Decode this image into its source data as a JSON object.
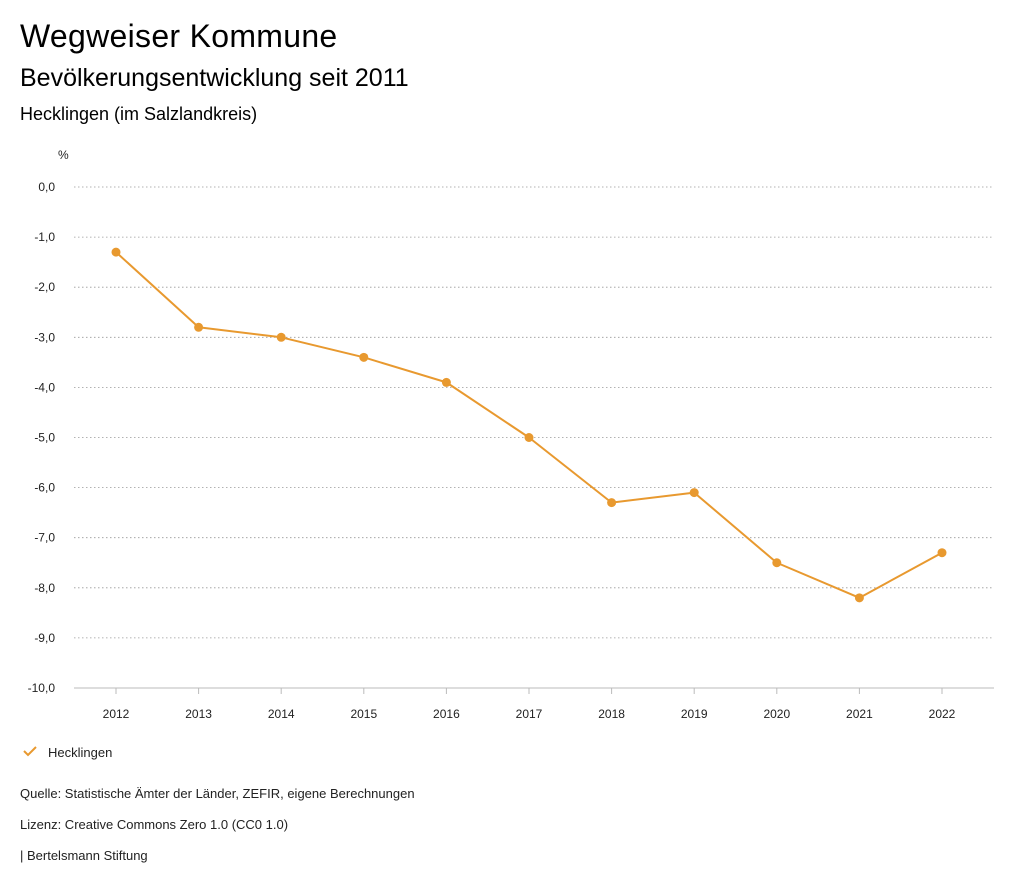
{
  "header": {
    "title": "Wegweiser Kommune",
    "subtitle": "Bevölkerungsentwicklung seit 2011",
    "region": "Hecklingen (im Salzlandkreis)"
  },
  "legend": {
    "label": "Hecklingen"
  },
  "footer": {
    "source": "Quelle: Statistische Ämter der Länder, ZEFIR, eigene Berechnungen",
    "license": "Lizenz: Creative Commons Zero 1.0 (CC0 1.0)",
    "org": "| Bertelsmann Stiftung"
  },
  "colors": {
    "series": "#E8992F",
    "grid": "#999999",
    "axis": "#333333"
  },
  "chart_data": {
    "type": "line",
    "title": "Bevölkerungsentwicklung seit 2011",
    "ylabel": "%",
    "xlabel": "",
    "ylim": [
      -10,
      0
    ],
    "yticks": [
      0,
      -1,
      -2,
      -3,
      -4,
      -5,
      -6,
      -7,
      -8,
      -9,
      -10
    ],
    "ytick_labels": [
      "0,0",
      "-1,0",
      "-2,0",
      "-3,0",
      "-4,0",
      "-5,0",
      "-6,0",
      "-7,0",
      "-8,0",
      "-9,0",
      "-10,0"
    ],
    "categories": [
      "2012",
      "2013",
      "2014",
      "2015",
      "2016",
      "2017",
      "2018",
      "2019",
      "2020",
      "2021",
      "2022"
    ],
    "series": [
      {
        "name": "Hecklingen",
        "values": [
          -1.3,
          -2.8,
          -3.0,
          -3.4,
          -3.9,
          -5.0,
          -6.3,
          -6.1,
          -7.5,
          -8.2,
          -7.3
        ]
      }
    ],
    "grid": true,
    "legend_position": "bottom-left"
  }
}
